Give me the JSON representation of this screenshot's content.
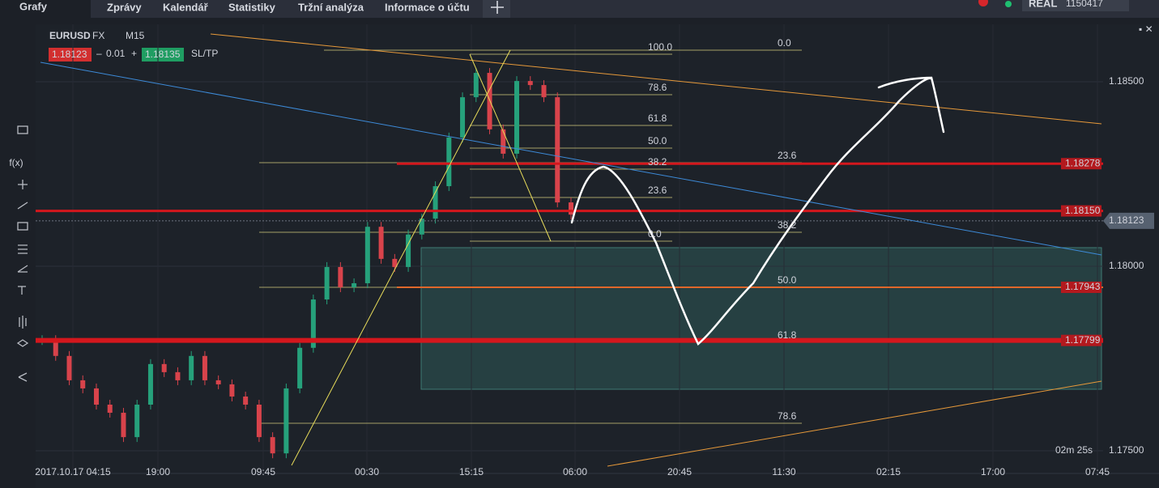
{
  "tabs": [
    "Grafy",
    "Zprávy",
    "Kalendář",
    "Statistiky",
    "Tržní analýza",
    "Informace o účtu"
  ],
  "account": {
    "mode": "REAL",
    "number": "1150417"
  },
  "chart": {
    "symbol": "EURUSD",
    "market": "FX",
    "timeframe": "M15",
    "sell_price": "1.18123",
    "lot_minus": "–",
    "lot": "0.01",
    "lot_plus": "+",
    "buy_price": "1.18135",
    "sltp": "SL/TP",
    "price_ticks": [
      {
        "value": 1.185,
        "label": "1.18500"
      },
      {
        "value": 1.18,
        "label": "1.18000"
      },
      {
        "value": 1.175,
        "label": "1.17500"
      }
    ],
    "time_labels": [
      "2017.10.17 04:15",
      "19:00",
      "09:45",
      "00:30",
      "15:15",
      "06:00",
      "20:45",
      "11:30",
      "02:15",
      "17:00",
      "07:45"
    ],
    "levels": [
      {
        "value": 1.18278,
        "label": "1.18278"
      },
      {
        "value": 1.1815,
        "label": "1.18150"
      },
      {
        "value": 1.17943,
        "label": "1.17943"
      },
      {
        "value": 1.17799,
        "label": "1.17799"
      }
    ],
    "current_price": {
      "value": 1.18123,
      "label": "1.18123"
    },
    "fib_a": [
      "100.0",
      "78.6",
      "61.8",
      "50.0",
      "38.2",
      "23.6",
      "0.0"
    ],
    "fib_b": [
      "0.0",
      "23.6",
      "38.2",
      "50.0",
      "61.8",
      "78.6"
    ],
    "countdown": "02m 25s",
    "closes": [
      1.178,
      1.17757,
      1.17691,
      1.17669,
      1.17625,
      1.17603,
      1.17537,
      1.17625,
      1.17735,
      1.17713,
      1.17691,
      1.17757,
      1.17691,
      1.1768,
      1.17647,
      1.17625,
      1.17537,
      1.17493,
      1.17669,
      1.17779,
      1.1791,
      1.17998,
      1.17943,
      1.17954,
      1.18107,
      1.1802,
      1.17998,
      1.18086,
      1.18129,
      1.18217,
      1.18349,
      1.18458,
      1.18524,
      1.18371,
      1.18305,
      1.18502,
      1.18491,
      1.18458,
      1.18173,
      1.1814
    ]
  }
}
